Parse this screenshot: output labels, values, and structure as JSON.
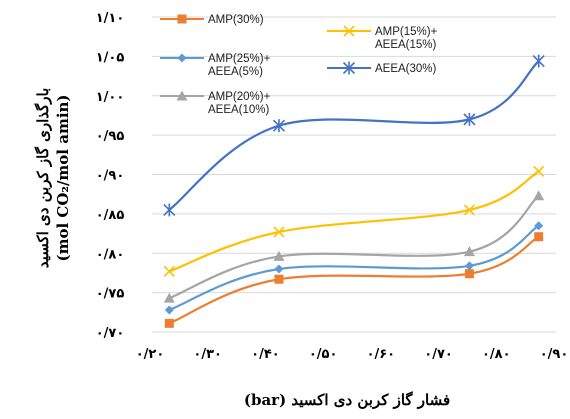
{
  "chart_data": {
    "type": "line",
    "title": "",
    "xlabel": "فشار گاز کربن دی اکسید (bar)",
    "ylabel_line1": "بارگذاری گاز کربن دی اکسید",
    "ylabel_line2": "(mol CO₂/mol amin)",
    "xlim": [
      0.2,
      0.9
    ],
    "ylim": [
      0.7,
      1.1
    ],
    "x_ticks": [
      0.2,
      0.3,
      0.4,
      0.5,
      0.6,
      0.7,
      0.8,
      0.9
    ],
    "x_tick_labels": [
      "۰/۲۰",
      "۰/۳۰",
      "۰/۴۰",
      "۰/۵۰",
      "۰/۶۰",
      "۰/۷۰",
      "۰/۸۰",
      "۰/۹۰"
    ],
    "y_ticks": [
      0.7,
      0.75,
      0.8,
      0.85,
      0.9,
      0.95,
      1.0,
      1.05,
      1.1
    ],
    "y_tick_labels": [
      "۰/۷۰",
      "۰/۷۵",
      "۰/۸۰",
      "۰/۸۵",
      "۰/۹۰",
      "۰/۹۵",
      "۱/۰۰",
      "۱/۰۵",
      "۱/۱۰"
    ],
    "grid": true,
    "legend": "top-inside",
    "series": [
      {
        "name": "AMP(30%)",
        "color": "#ed7d31",
        "marker": "square",
        "x": [
          0.23,
          0.42,
          0.75,
          0.87
        ],
        "y": [
          0.711,
          0.767,
          0.774,
          0.821
        ]
      },
      {
        "name": "AMP(25%)+ AEEA(5%)",
        "color": "#5b9bd5",
        "marker": "diamond",
        "x": [
          0.23,
          0.42,
          0.75,
          0.87
        ],
        "y": [
          0.728,
          0.78,
          0.784,
          0.835
        ]
      },
      {
        "name": "AMP(20%)+ AEEA(10%)",
        "color": "#a5a5a5",
        "marker": "triangle",
        "x": [
          0.23,
          0.42,
          0.75,
          0.87
        ],
        "y": [
          0.743,
          0.796,
          0.802,
          0.873
        ]
      },
      {
        "name": "AMP(15%)+ AEEA(15%)",
        "color": "#ffc000",
        "marker": "x",
        "x": [
          0.23,
          0.42,
          0.75,
          0.87
        ],
        "y": [
          0.777,
          0.827,
          0.855,
          0.904
        ]
      },
      {
        "name": "AEEA(30%)",
        "color": "#4472c4",
        "marker": "star",
        "x": [
          0.23,
          0.42,
          0.75,
          0.87
        ],
        "y": [
          0.855,
          0.962,
          0.97,
          1.044
        ]
      }
    ]
  }
}
